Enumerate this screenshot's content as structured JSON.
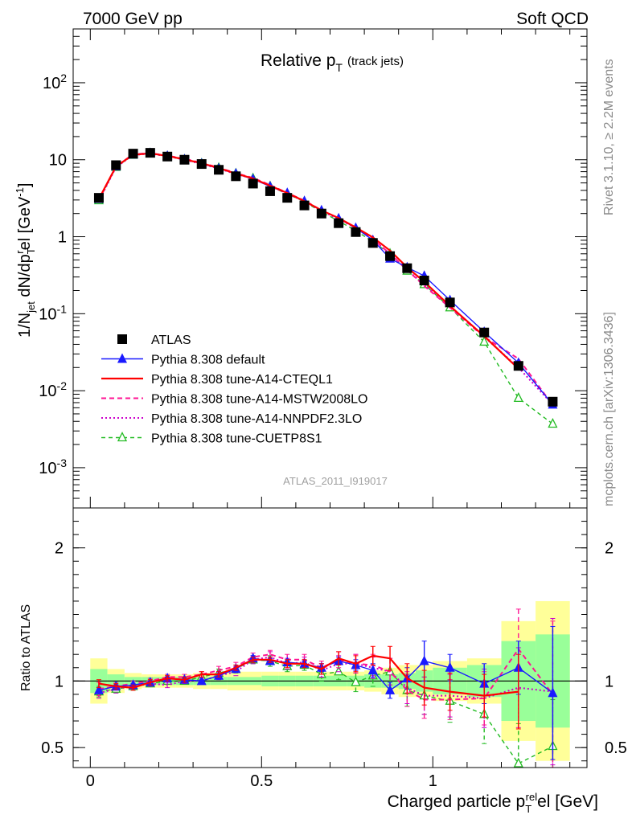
{
  "header": {
    "left": "7000 GeV pp",
    "right": "Soft QCD"
  },
  "side_text": {
    "rivet": "Rivet 3.1.10, ≥ 2.2M events",
    "mcplots": "mcplots.cern.ch [arXiv:1306.3436]"
  },
  "analysis_id": "ATLAS_2011_I919017",
  "colors": {
    "ATLAS": "#000000",
    "default": "#1a1aff",
    "CTEQL1": "#ff0000",
    "MSTW": "#ff1493",
    "NNPDF": "#cc00cc",
    "CUETP8S1": "#22bb22",
    "band_yellow": "#ffff99",
    "band_green": "#99ff99"
  },
  "chart_data": [
    {
      "type": "line",
      "title": "Relative p_T (track jets)",
      "title_main": "Relative p",
      "title_sub": "T",
      "title_note": "(track jets)",
      "ylabel": "1/N_jet dN/dp_T^rel [GeV^-1]",
      "yscale": "log",
      "ylim": [
        0.0003,
        500
      ],
      "xlim": [
        -0.05,
        1.45
      ],
      "ytick_labels": [
        "10^-3",
        "10^-2",
        "10^-1",
        "1",
        "10",
        "10^2"
      ],
      "legend_position": "bottom-left",
      "x": [
        0.025,
        0.075,
        0.125,
        0.175,
        0.225,
        0.275,
        0.325,
        0.375,
        0.425,
        0.475,
        0.525,
        0.575,
        0.625,
        0.675,
        0.725,
        0.775,
        0.825,
        0.875,
        0.925,
        0.975,
        1.05,
        1.15,
        1.25,
        1.35
      ],
      "series": [
        {
          "name": "ATLAS",
          "key": "ATLAS",
          "values": [
            3.2,
            8.5,
            12.0,
            12.3,
            11.0,
            10.0,
            8.8,
            7.4,
            6.1,
            4.9,
            3.9,
            3.2,
            2.55,
            2.0,
            1.5,
            1.15,
            0.83,
            0.56,
            0.39,
            0.27,
            0.14,
            0.057,
            0.021,
            0.0072
          ]
        },
        {
          "name": "Pythia 8.308 default",
          "key": "default",
          "values": [
            3.1,
            8.2,
            11.7,
            12.2,
            11.2,
            10.1,
            8.9,
            7.7,
            6.6,
            5.6,
            4.5,
            3.7,
            2.9,
            2.2,
            1.73,
            1.3,
            0.9,
            0.52,
            0.4,
            0.31,
            0.15,
            0.058,
            0.023,
            0.0066
          ]
        },
        {
          "name": "Pythia 8.308 tune-A14-CTEQL1",
          "key": "CTEQL1",
          "values": [
            3.1,
            8.2,
            11.6,
            12.1,
            11.2,
            10.1,
            9.0,
            7.8,
            6.6,
            5.7,
            4.6,
            3.7,
            2.9,
            2.2,
            1.75,
            1.32,
            0.98,
            0.66,
            0.4,
            0.26,
            0.126,
            0.051,
            0.0193,
            null
          ]
        },
        {
          "name": "Pythia 8.308 tune-A14-MSTW2008LO",
          "key": "MSTW",
          "values": [
            3.0,
            8.2,
            11.8,
            12.2,
            11.3,
            10.3,
            9.1,
            7.9,
            6.7,
            5.8,
            4.7,
            3.7,
            2.95,
            2.2,
            1.73,
            1.3,
            0.93,
            0.6,
            0.37,
            0.23,
            0.12,
            0.05,
            0.026,
            0.0065
          ]
        },
        {
          "name": "Pythia 8.308 tune-A14-NNPDF2.3LO",
          "key": "NNPDF",
          "values": [
            2.9,
            8.0,
            11.5,
            12.0,
            11.1,
            10.0,
            8.8,
            7.7,
            6.5,
            5.7,
            4.6,
            3.6,
            2.9,
            2.15,
            1.7,
            1.3,
            0.92,
            0.6,
            0.37,
            0.24,
            0.125,
            0.05,
            0.02,
            0.0066
          ]
        },
        {
          "name": "Pythia 8.308 tune-CUETP8S1",
          "key": "CUETP8S1",
          "values": [
            2.95,
            8.0,
            11.5,
            12.1,
            11.1,
            10.0,
            8.9,
            7.8,
            6.6,
            5.7,
            4.5,
            3.6,
            2.85,
            2.1,
            1.6,
            1.2,
            0.86,
            0.6,
            0.36,
            0.24,
            0.12,
            0.043,
            0.008,
            0.0037
          ]
        }
      ]
    },
    {
      "type": "line",
      "ylabel": "Ratio to ATLAS",
      "xlabel": "Charged particle p_T^rel [GeV]",
      "xlabel_main": "Charged particle p",
      "xlabel_sup": "rel",
      "xlabel_sub": "T",
      "xlabel_unit": "el [GeV]",
      "ylim": [
        0.35,
        2.3
      ],
      "xlim": [
        -0.05,
        1.45
      ],
      "xticks": [
        0,
        0.5,
        1
      ],
      "xtick_labels": [
        "0",
        "0.5",
        "1"
      ],
      "yticks": [
        0.5,
        1,
        2
      ],
      "ytick_labels": [
        "0.5",
        "1",
        "2"
      ],
      "reference_line": 1,
      "x": [
        0.025,
        0.075,
        0.125,
        0.175,
        0.225,
        0.275,
        0.325,
        0.375,
        0.425,
        0.475,
        0.525,
        0.575,
        0.625,
        0.675,
        0.725,
        0.775,
        0.825,
        0.875,
        0.925,
        0.975,
        1.05,
        1.15,
        1.25,
        1.35
      ],
      "bins": [
        [
          0.0,
          0.05
        ],
        [
          0.05,
          0.1
        ],
        [
          0.1,
          0.15
        ],
        [
          0.15,
          0.2
        ],
        [
          0.2,
          0.25
        ],
        [
          0.25,
          0.3
        ],
        [
          0.3,
          0.35
        ],
        [
          0.35,
          0.4
        ],
        [
          0.4,
          0.45
        ],
        [
          0.45,
          0.5
        ],
        [
          0.5,
          0.55
        ],
        [
          0.55,
          0.6
        ],
        [
          0.6,
          0.65
        ],
        [
          0.65,
          0.7
        ],
        [
          0.7,
          0.75
        ],
        [
          0.75,
          0.8
        ],
        [
          0.8,
          0.85
        ],
        [
          0.85,
          0.9
        ],
        [
          0.9,
          0.95
        ],
        [
          0.95,
          1.0
        ],
        [
          1.0,
          1.1
        ],
        [
          1.1,
          1.2
        ],
        [
          1.2,
          1.3
        ],
        [
          1.3,
          1.4
        ]
      ],
      "band_yellow": [
        0.17,
        0.09,
        0.06,
        0.05,
        0.05,
        0.05,
        0.06,
        0.06,
        0.07,
        0.07,
        0.07,
        0.07,
        0.07,
        0.07,
        0.07,
        0.07,
        0.08,
        0.1,
        0.12,
        0.12,
        0.15,
        0.17,
        0.45,
        0.6
      ],
      "band_green": [
        0.09,
        0.05,
        0.03,
        0.03,
        0.03,
        0.03,
        0.03,
        0.03,
        0.03,
        0.03,
        0.04,
        0.04,
        0.04,
        0.04,
        0.04,
        0.04,
        0.05,
        0.05,
        0.06,
        0.08,
        0.1,
        0.12,
        0.3,
        0.35
      ],
      "series": [
        {
          "name": "Pythia 8.308 default",
          "key": "default",
          "values": [
            0.93,
            0.96,
            0.97,
            0.99,
            1.02,
            1.01,
            1.0,
            1.04,
            1.09,
            1.17,
            1.15,
            1.14,
            1.13,
            1.1,
            1.15,
            1.12,
            1.08,
            0.93,
            1.02,
            1.15,
            1.1,
            0.98,
            1.1,
            0.91
          ],
          "err": [
            0.02,
            0.01,
            0.01,
            0.01,
            0.01,
            0.01,
            0.01,
            0.01,
            0.01,
            0.02,
            0.02,
            0.02,
            0.02,
            0.03,
            0.03,
            0.04,
            0.05,
            0.06,
            0.08,
            0.15,
            0.1,
            0.15,
            0.2,
            0.5
          ]
        },
        {
          "name": "Pythia 8.308 tune-A14-CTEQL1",
          "key": "CTEQL1",
          "values": [
            0.98,
            0.96,
            0.95,
            0.99,
            1.02,
            1.01,
            1.05,
            1.05,
            1.1,
            1.16,
            1.16,
            1.13,
            1.13,
            1.09,
            1.17,
            1.13,
            1.19,
            1.17,
            1.02,
            0.95,
            0.92,
            0.89,
            0.92,
            null
          ],
          "err": [
            0.03,
            0.02,
            0.02,
            0.02,
            0.02,
            0.02,
            0.02,
            0.02,
            0.02,
            0.02,
            0.02,
            0.03,
            0.03,
            0.04,
            0.05,
            0.06,
            0.07,
            0.09,
            0.11,
            0.13,
            0.14,
            0.16,
            0.28,
            null
          ]
        },
        {
          "name": "Pythia 8.308 tune-A14-MSTW2008LO",
          "key": "MSTW",
          "values": [
            0.94,
            0.96,
            0.98,
            1.0,
            1.03,
            1.03,
            1.05,
            1.08,
            1.11,
            1.18,
            1.2,
            1.16,
            1.16,
            1.1,
            1.16,
            1.13,
            1.12,
            1.07,
            0.93,
            0.86,
            0.86,
            0.87,
            1.24,
            0.9
          ],
          "err": [
            0.05,
            0.03,
            0.02,
            0.02,
            0.02,
            0.02,
            0.02,
            0.03,
            0.03,
            0.03,
            0.03,
            0.04,
            0.04,
            0.05,
            0.06,
            0.07,
            0.08,
            0.1,
            0.12,
            0.14,
            0.15,
            0.2,
            0.3,
            0.55
          ]
        },
        {
          "name": "Pythia 8.308 tune-A14-NNPDF2.3LO",
          "key": "NNPDF",
          "values": [
            0.91,
            0.94,
            0.96,
            0.98,
            0.97,
            1.0,
            1.0,
            1.04,
            1.07,
            1.16,
            1.18,
            1.13,
            1.14,
            1.08,
            1.13,
            1.13,
            1.1,
            1.07,
            0.95,
            0.89,
            0.89,
            0.87,
            0.95,
            0.92
          ],
          "err": [
            0.04,
            0.03,
            0.02,
            0.02,
            0.02,
            0.02,
            0.02,
            0.03,
            0.03,
            0.03,
            0.04,
            0.04,
            0.04,
            0.05,
            0.06,
            0.07,
            0.08,
            0.1,
            0.12,
            0.14,
            0.16,
            0.22,
            0.3,
            0.55
          ]
        },
        {
          "name": "Pythia 8.308 tune-CUETP8S1",
          "key": "CUETP8S1",
          "values": [
            0.92,
            0.94,
            0.96,
            0.98,
            1.0,
            1.0,
            1.03,
            1.06,
            1.09,
            1.16,
            1.15,
            1.11,
            1.12,
            1.05,
            1.07,
            0.99,
            1.04,
            1.07,
            0.93,
            0.89,
            0.85,
            0.75,
            0.38,
            0.51
          ],
          "err": [
            0.04,
            0.03,
            0.02,
            0.02,
            0.02,
            0.02,
            0.02,
            0.03,
            0.03,
            0.03,
            0.04,
            0.04,
            0.04,
            0.05,
            0.06,
            0.07,
            0.08,
            0.1,
            0.12,
            0.14,
            0.16,
            0.22,
            0.3,
            0.35
          ]
        }
      ]
    }
  ]
}
